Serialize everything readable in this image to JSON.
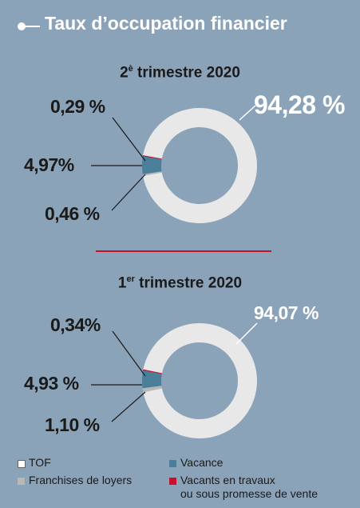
{
  "header": {
    "title": "Taux d’occupation financier"
  },
  "colors": {
    "background": "#8ba3b8",
    "tof": "#e8e8e8",
    "vacance": "#4a7f9a",
    "franchises": "#b8b8b8",
    "vacants": "#c8102e",
    "separator": "#c8102e"
  },
  "chart_data": [
    {
      "type": "pie",
      "subtitle_main": "2",
      "subtitle_sup": "è",
      "subtitle_rest": " trimestre 2020",
      "slices": [
        {
          "key": "tof",
          "value": 94.28,
          "label": "94,28 %"
        },
        {
          "key": "vacants",
          "value": 0.29,
          "label": "0,29 %"
        },
        {
          "key": "vacance",
          "value": 4.97,
          "label": "4,97%"
        },
        {
          "key": "franchises",
          "value": 0.46,
          "label": "0,46 %"
        }
      ]
    },
    {
      "type": "pie",
      "subtitle_main": "1",
      "subtitle_sup": "er",
      "subtitle_rest": " trimestre 2020",
      "slices": [
        {
          "key": "tof",
          "value": 94.07,
          "label": "94,07 %"
        },
        {
          "key": "vacants",
          "value": 0.34,
          "label": "0,34%"
        },
        {
          "key": "vacance",
          "value": 4.93,
          "label": "4,93 %"
        },
        {
          "key": "franchises",
          "value": 1.1,
          "label": "1,10 %"
        }
      ]
    }
  ],
  "legend": {
    "tof": "TOF",
    "franchises": "Franchises de loyers",
    "vacance": "Vacance",
    "vacants_line1": "Vacants en travaux",
    "vacants_line2": "ou sous promesse de vente"
  }
}
